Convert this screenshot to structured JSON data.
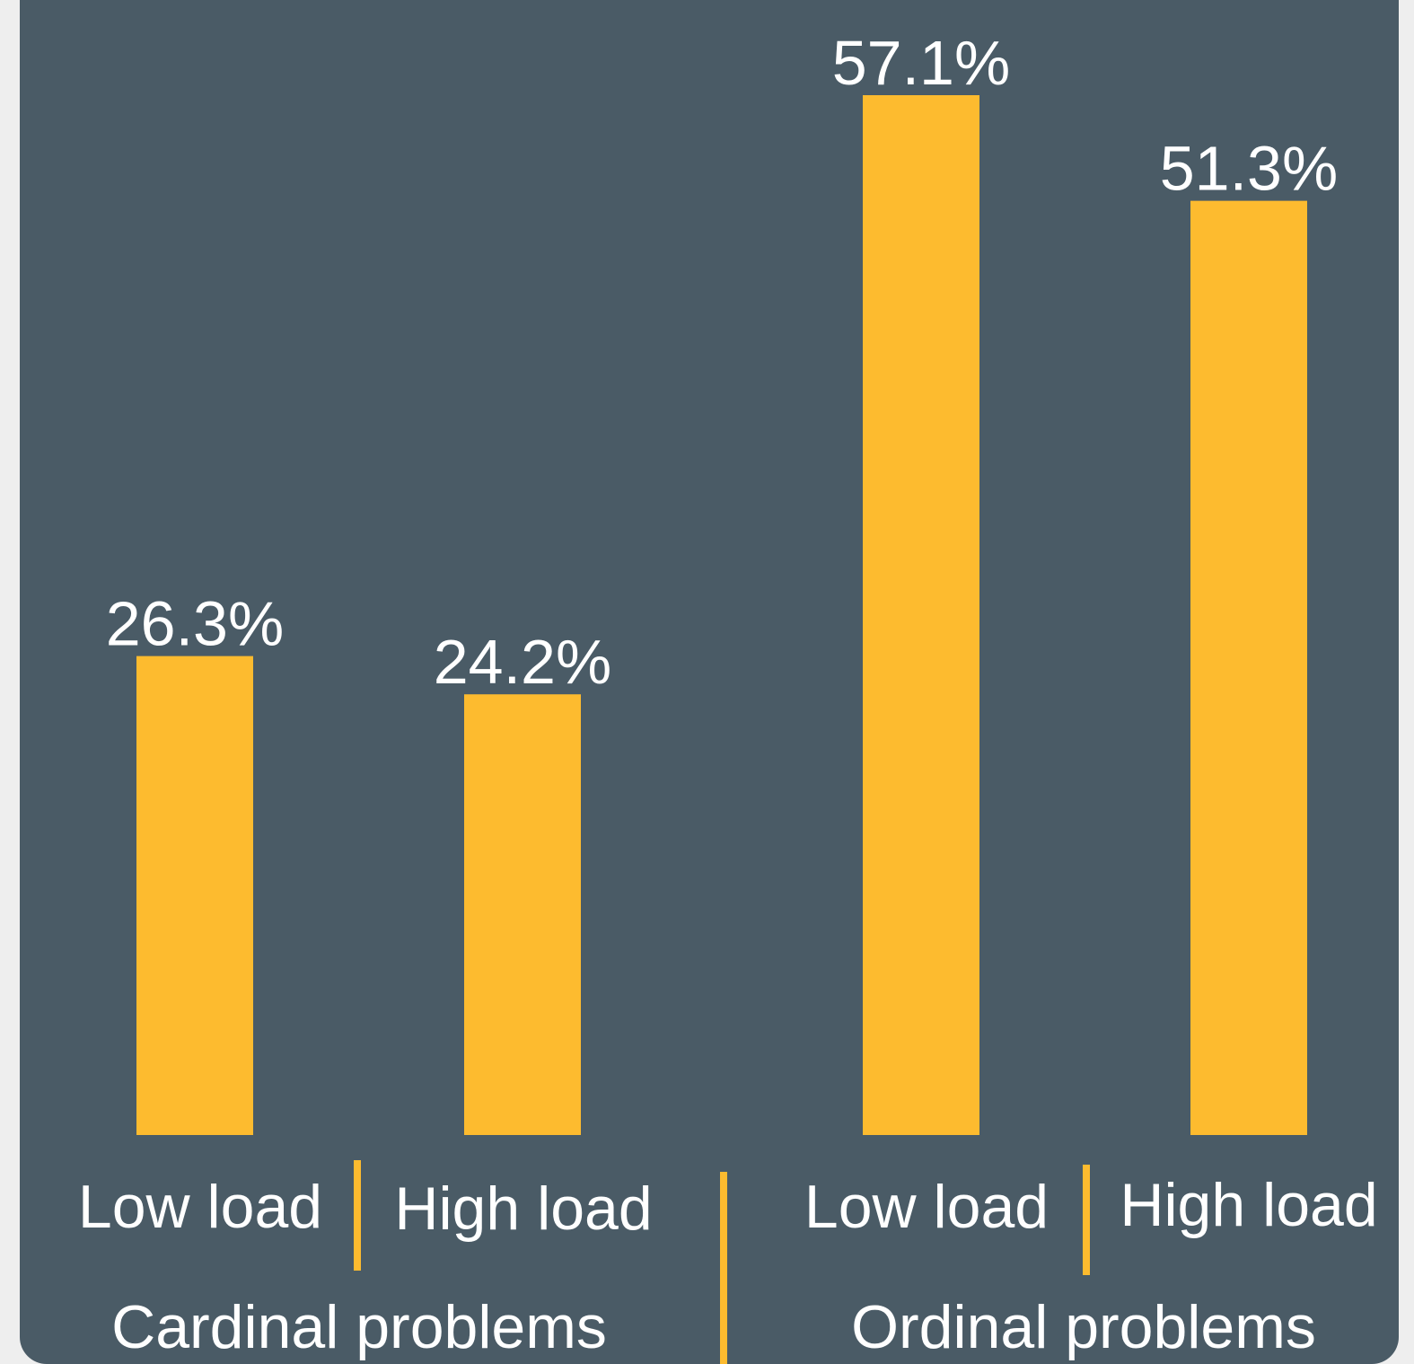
{
  "chart_data": {
    "type": "bar",
    "groups": [
      "Cardinal problems",
      "Ordinal problems"
    ],
    "categories": [
      "Low load",
      "High load",
      "Low load",
      "High load"
    ],
    "group_of_category": [
      0,
      0,
      1,
      1
    ],
    "values": [
      26.3,
      24.2,
      57.1,
      51.3
    ],
    "value_labels": [
      "26.3%",
      "24.2%",
      "57.1%",
      "51.3%"
    ],
    "ylim": [
      0,
      57.1
    ],
    "grid": false,
    "bar_color": "#fdbb2f",
    "background_color": "#4a5b66",
    "text_color": "#ffffff"
  }
}
